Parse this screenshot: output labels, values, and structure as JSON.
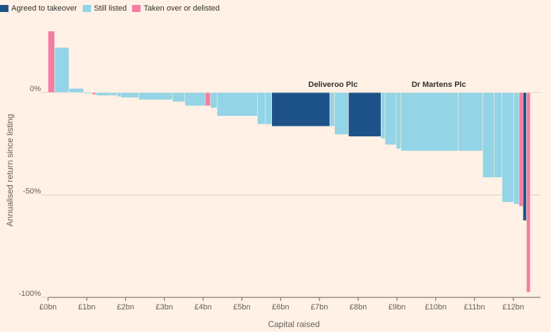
{
  "legend": [
    {
      "label": "Agreed to takeover",
      "color": "#1d5289"
    },
    {
      "label": "Still listed",
      "color": "#93d4e6"
    },
    {
      "label": "Taken over or delisted",
      "color": "#f47ea3"
    }
  ],
  "chart_data": {
    "type": "bar",
    "subtype": "variable-width (marimekko) bar",
    "xlabel": "Capital raised",
    "ylabel": "Annualised return since listing",
    "xlim": [
      0,
      12.7
    ],
    "ylim": [
      -100,
      30
    ],
    "x_ticks": [
      "£0bn",
      "£1bn",
      "£2bn",
      "£3bn",
      "£4bn",
      "£5bn",
      "£6bn",
      "£7bn",
      "£8bn",
      "£9bn",
      "£10bn",
      "£11bn",
      "£12bn"
    ],
    "y_ticks": [
      "0%",
      "-50%",
      "-100%"
    ],
    "grid": "horizontal",
    "legend_position": "top-left",
    "annotations": [
      {
        "text": "Deliveroo Plc",
        "x": 7.35
      },
      {
        "text": "Dr Martens Plc",
        "x": 10.08
      }
    ],
    "bars": [
      {
        "width": 0.17,
        "value": 30,
        "status": "Taken over or delisted"
      },
      {
        "width": 0.37,
        "value": 22,
        "status": "Still listed"
      },
      {
        "width": 0.38,
        "value": 2,
        "status": "Still listed"
      },
      {
        "width": 0.22,
        "value": -0.5,
        "status": "Still listed"
      },
      {
        "width": 0.1,
        "value": -1,
        "status": "Taken over or delisted"
      },
      {
        "width": 0.36,
        "value": -1.5,
        "status": "Still listed"
      },
      {
        "width": 0.18,
        "value": -1.5,
        "status": "Still listed"
      },
      {
        "width": 0.1,
        "value": -2,
        "status": "Still listed"
      },
      {
        "width": 0.46,
        "value": -2.5,
        "status": "Still listed"
      },
      {
        "width": 0.87,
        "value": -3.5,
        "status": "Still listed"
      },
      {
        "width": 0.32,
        "value": -4.5,
        "status": "Still listed"
      },
      {
        "width": 0.52,
        "value": -6.5,
        "status": "Still listed"
      },
      {
        "width": 0.14,
        "value": -6.5,
        "status": "Taken over or delisted"
      },
      {
        "width": 0.17,
        "value": -7.5,
        "status": "Still listed"
      },
      {
        "width": 1.04,
        "value": -11.5,
        "status": "Still listed"
      },
      {
        "width": 0.2,
        "value": -15.5,
        "status": "Still listed"
      },
      {
        "width": 0.17,
        "value": -15.5,
        "status": "Still listed"
      },
      {
        "width": 1.5,
        "value": -16.5,
        "status": "Agreed to takeover"
      },
      {
        "width": 0.12,
        "value": -16.5,
        "status": "Still listed"
      },
      {
        "width": 0.36,
        "value": -20.5,
        "status": "Still listed"
      },
      {
        "width": 0.84,
        "value": -21.5,
        "status": "Agreed to takeover"
      },
      {
        "width": 0.1,
        "value": -22.5,
        "status": "Still listed"
      },
      {
        "width": 0.29,
        "value": -25.5,
        "status": "Still listed"
      },
      {
        "width": 0.12,
        "value": -27.5,
        "status": "Still listed"
      },
      {
        "width": 1.48,
        "value": -28.5,
        "status": "Still listed"
      },
      {
        "width": 0.63,
        "value": -28.5,
        "status": "Still listed"
      },
      {
        "width": 0.3,
        "value": -41.5,
        "status": "Still listed"
      },
      {
        "width": 0.2,
        "value": -41.5,
        "status": "Still listed"
      },
      {
        "width": 0.3,
        "value": -53.5,
        "status": "Still listed"
      },
      {
        "width": 0.14,
        "value": -54.5,
        "status": "Still listed"
      },
      {
        "width": 0.1,
        "value": -55.5,
        "status": "Taken over or delisted"
      },
      {
        "width": 0.09,
        "value": -62.5,
        "status": "Agreed to takeover"
      },
      {
        "width": 0.1,
        "value": -97.5,
        "status": "Taken over or delisted"
      }
    ]
  }
}
